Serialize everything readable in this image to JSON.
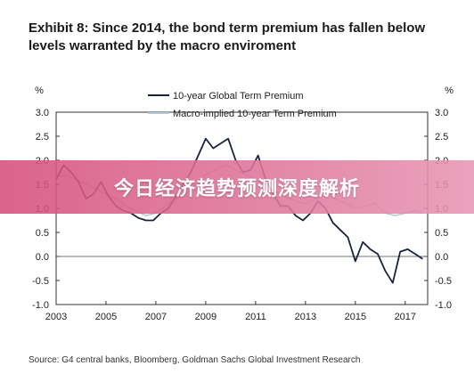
{
  "chart_data": {
    "type": "line",
    "title": "Exhibit 8: Since 2014, the bond term premium has fallen below levels warranted by the macro enviroment",
    "y_unit_left": "%",
    "y_unit_right": "%",
    "xlim": [
      2003,
      2017.9
    ],
    "ylim": [
      -1.0,
      3.0
    ],
    "x_ticks": [
      2003,
      2005,
      2007,
      2009,
      2011,
      2013,
      2015,
      2017
    ],
    "y_ticks": [
      -1.0,
      -0.5,
      0.0,
      0.5,
      1.0,
      1.5,
      2.0,
      2.5,
      3.0
    ],
    "y_tick_labels": [
      "-1.0",
      "-0.5",
      "0.0",
      "0.5",
      "1.0",
      "1.5",
      "2.0",
      "2.5",
      "3.0"
    ],
    "grid": false,
    "legend_position": "top-center",
    "series": [
      {
        "name": "10-year Global Term Premium",
        "color": "#17233f",
        "x": [
          2003.0,
          2003.3,
          2003.6,
          2003.9,
          2004.2,
          2004.5,
          2004.8,
          2005.1,
          2005.4,
          2005.7,
          2006.0,
          2006.3,
          2006.6,
          2006.9,
          2007.2,
          2007.5,
          2007.8,
          2008.1,
          2008.4,
          2008.7,
          2009.0,
          2009.3,
          2009.6,
          2009.9,
          2010.2,
          2010.5,
          2010.8,
          2011.1,
          2011.4,
          2011.7,
          2012.0,
          2012.3,
          2012.6,
          2012.9,
          2013.2,
          2013.5,
          2013.8,
          2014.1,
          2014.4,
          2014.7,
          2015.0,
          2015.3,
          2015.6,
          2015.9,
          2016.2,
          2016.5,
          2016.8,
          2017.1,
          2017.4,
          2017.7
        ],
        "y": [
          1.6,
          1.9,
          1.75,
          1.55,
          1.2,
          1.3,
          1.55,
          1.25,
          1.05,
          0.95,
          0.9,
          0.8,
          0.75,
          0.75,
          0.9,
          1.0,
          1.25,
          1.5,
          1.75,
          2.1,
          2.45,
          2.25,
          2.35,
          2.45,
          2.0,
          1.75,
          1.8,
          2.1,
          1.6,
          1.3,
          1.05,
          1.05,
          0.85,
          0.75,
          0.9,
          1.15,
          1.0,
          0.7,
          0.55,
          0.4,
          -0.1,
          0.3,
          0.15,
          0.05,
          -0.3,
          -0.55,
          0.1,
          0.15,
          0.05,
          -0.05
        ]
      },
      {
        "name": "Macro-implied 10-year Term Premium",
        "color": "#b4c9d6",
        "x": [
          2003.0,
          2003.4,
          2003.8,
          2004.2,
          2004.6,
          2005.0,
          2005.4,
          2005.8,
          2006.2,
          2006.6,
          2007.0,
          2007.4,
          2007.8,
          2008.2,
          2008.6,
          2009.0,
          2009.4,
          2009.8,
          2010.2,
          2010.6,
          2011.0,
          2011.4,
          2011.8,
          2012.2,
          2012.6,
          2013.0,
          2013.4,
          2013.8,
          2014.2,
          2014.6,
          2015.0,
          2015.4,
          2015.8,
          2016.2,
          2016.6,
          2017.0,
          2017.4,
          2017.7
        ],
        "y": [
          1.65,
          1.7,
          1.6,
          1.5,
          1.4,
          1.3,
          1.2,
          1.05,
          0.95,
          0.85,
          0.9,
          1.05,
          1.2,
          1.3,
          1.5,
          1.7,
          1.8,
          1.9,
          1.8,
          1.7,
          1.6,
          1.5,
          1.35,
          1.25,
          1.15,
          1.1,
          1.2,
          1.3,
          1.2,
          1.1,
          1.0,
          1.05,
          1.1,
          0.9,
          0.85,
          0.9,
          0.95,
          0.9
        ]
      }
    ]
  },
  "banner": {
    "text": "今日经济趋势预测深度解析",
    "color_start": "#d64f7c",
    "color_end": "#e796b3"
  },
  "source": "Source: G4 central banks, Bloomberg, Goldman Sachs Global Investment Research"
}
